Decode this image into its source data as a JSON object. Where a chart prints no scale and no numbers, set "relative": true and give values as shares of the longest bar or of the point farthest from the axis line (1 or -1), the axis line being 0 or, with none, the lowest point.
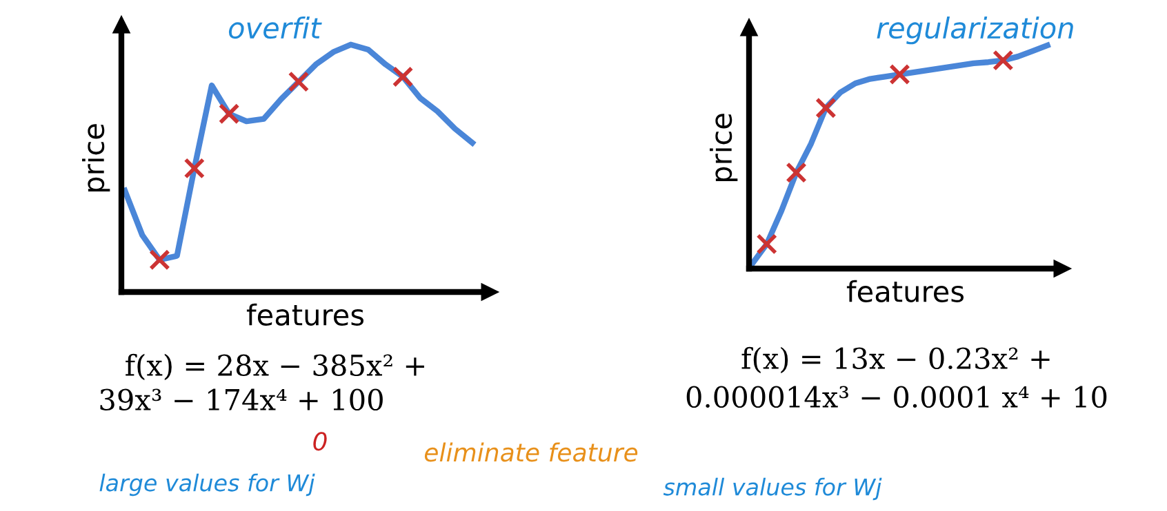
{
  "chart_data": [
    {
      "type": "line",
      "title": "overfit",
      "xlabel": "features",
      "ylabel": "price",
      "relative": true,
      "categories": [
        null,
        null,
        null,
        null,
        null,
        null,
        null,
        null,
        null,
        null,
        null,
        null,
        null,
        null,
        null,
        null,
        null,
        null,
        null,
        null,
        null
      ],
      "series": [
        {
          "color": "#4a86d8",
          "values": [
            0.41,
            0.23,
            0.13,
            0.146,
            0.5,
            0.835,
            0.72,
            0.69,
            0.7,
            0.78,
            0.85,
            0.92,
            0.97,
            1.0,
            0.98,
            0.92,
            0.87,
            0.784,
            0.73,
            0.66,
            0.603
          ]
        },
        {
          "color": "#cc3333",
          "marker": "cross",
          "values": [
            null,
            null,
            0.13,
            null,
            0.5,
            null,
            0.72,
            null,
            null,
            null,
            0.85,
            null,
            null,
            null,
            null,
            null,
            0.87,
            null,
            null,
            null,
            null
          ]
        }
      ],
      "annotations": [
        "f(x) = 28x − 385x² +",
        "39x³ − 174x⁴ + 100",
        "0",
        "eliminate feature",
        "large values for Wj"
      ]
    },
    {
      "type": "line",
      "title": "regularization",
      "xlabel": "features",
      "ylabel": "price",
      "relative": true,
      "categories": [
        null,
        null,
        null,
        null,
        null,
        null,
        null,
        null,
        null,
        null,
        null,
        null,
        null,
        null,
        null,
        null,
        null,
        null,
        null,
        null,
        null
      ],
      "series": [
        {
          "color": "#4a86d8",
          "values": [
            0.02,
            0.11,
            0.26,
            0.43,
            0.56,
            0.72,
            0.79,
            0.83,
            0.85,
            0.86,
            0.87,
            0.88,
            0.89,
            0.9,
            0.91,
            0.92,
            0.925,
            0.933,
            0.95,
            0.975,
            1.0
          ]
        },
        {
          "color": "#cc3333",
          "marker": "cross",
          "values": [
            null,
            0.11,
            null,
            0.43,
            null,
            0.72,
            null,
            null,
            null,
            null,
            0.87,
            null,
            null,
            null,
            null,
            null,
            null,
            0.933,
            null,
            null,
            null
          ]
        }
      ],
      "annotations": [
        "f(x) = 13x − 0.23x² +",
        "0.000014x³ − 0.0001 x⁴ + 10",
        "small values for Wj"
      ]
    }
  ]
}
